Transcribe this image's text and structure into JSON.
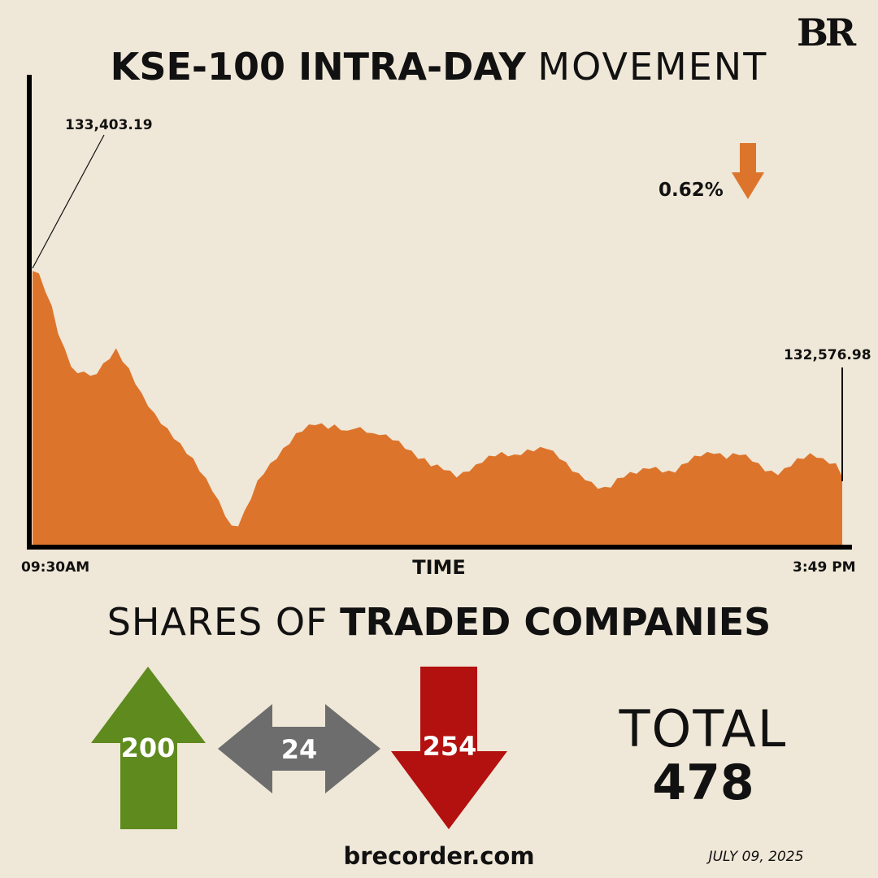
{
  "brand": {
    "logo_text": "BR"
  },
  "title": {
    "bold": "KSE-100 INTRA-DAY",
    "light": "MOVEMENT"
  },
  "colors": {
    "background": "#efe7d7",
    "area": "#dd742c",
    "up": "#5e8a1e",
    "unchanged": "#6d6d6d",
    "down": "#b31010",
    "change_arrow": "#dd742c"
  },
  "chart_data": {
    "type": "area",
    "title": "KSE-100 INTRA-DAY MOVEMENT",
    "xlabel": "TIME",
    "ylabel": "",
    "x_tick_labels": [
      "09:30AM",
      "3:49 PM"
    ],
    "annotations": {
      "open_value": "133,403.19",
      "close_value": "132,576.98",
      "change": "0.62%",
      "change_direction": "down"
    },
    "ylim": [
      132300,
      133700
    ],
    "grid": false,
    "legend": "none",
    "values": [
      133403.19,
      133380,
      133320,
      133250,
      133150,
      133080,
      133020,
      132980,
      133000,
      132970,
      132990,
      133020,
      133050,
      133080,
      133040,
      133000,
      132950,
      132900,
      132860,
      132820,
      132790,
      132760,
      132730,
      132700,
      132670,
      132640,
      132600,
      132560,
      132520,
      132470,
      132420,
      132370,
      132380,
      132430,
      132490,
      132550,
      132590,
      132620,
      132650,
      132680,
      132710,
      132740,
      132760,
      132775,
      132785,
      132780,
      132770,
      132775,
      132765,
      132750,
      132770,
      132765,
      132755,
      132740,
      132745,
      132735,
      132725,
      132710,
      132690,
      132670,
      132650,
      132640,
      132620,
      132615,
      132605,
      132590,
      132575,
      132585,
      132600,
      132615,
      132635,
      132650,
      132660,
      132665,
      132660,
      132655,
      132665,
      132675,
      132680,
      132685,
      132690,
      132670,
      132650,
      132625,
      132600,
      132580,
      132565,
      132545,
      132530,
      132525,
      132535,
      132560,
      132575,
      132585,
      132590,
      132600,
      132610,
      132605,
      132595,
      132590,
      132595,
      132615,
      132635,
      132650,
      132660,
      132665,
      132670,
      132660,
      132650,
      132660,
      132665,
      132655,
      132640,
      132620,
      132600,
      132590,
      132585,
      132600,
      132620,
      132640,
      132650,
      132660,
      132655,
      132640,
      132630,
      132620,
      132576.98
    ]
  },
  "shares": {
    "title_light": "SHARES OF",
    "title_bold": "TRADED COMPANIES",
    "up": "200",
    "unchanged": "24",
    "down": "254",
    "total_label": "TOTAL",
    "total": "478"
  },
  "footer": {
    "site": "brecorder.com",
    "date": "JULY 09, 2025"
  }
}
